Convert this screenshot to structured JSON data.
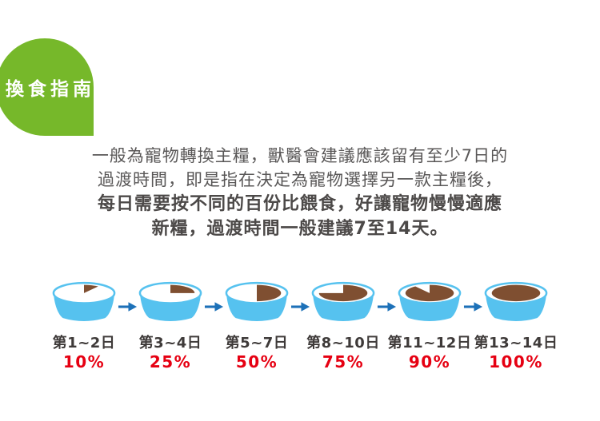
{
  "badge": {
    "label": "換食指南",
    "bg_color": "#76b82a",
    "text_color": "#ffffff"
  },
  "intro": {
    "lines": [
      "一般為寵物轉換主糧，獸醫會建議應該留有至少7日的",
      "過渡時間，即是指在決定為寵物選擇另一款主糧後，"
    ],
    "emphasis_lines": [
      "每日需要按不同的百份比餵食，好讓寵物慢慢適應",
      "新糧，過渡時間一般建議7至14天。"
    ]
  },
  "chart_data": {
    "type": "pie",
    "title": "換食指南",
    "categories": [
      "第1~2日",
      "第3~4日",
      "第5~7日",
      "第8~10日",
      "第11~12日",
      "第13~14日"
    ],
    "values": [
      10,
      25,
      50,
      75,
      90,
      100
    ],
    "steps": [
      {
        "days": "第1~2日",
        "percent_label": "10%",
        "value": 10
      },
      {
        "days": "第3~4日",
        "percent_label": "25%",
        "value": 25
      },
      {
        "days": "第5~7日",
        "percent_label": "50%",
        "value": 50
      },
      {
        "days": "第8~10日",
        "percent_label": "75%",
        "value": 75
      },
      {
        "days": "第11~12日",
        "percent_label": "90%",
        "value": 90
      },
      {
        "days": "第13~14日",
        "percent_label": "100%",
        "value": 100
      }
    ],
    "colors": {
      "bowl_blue": "#56c2ef",
      "rim_fill": "#ffffff",
      "food_brown": "#7f4f31",
      "arrow_blue": "#1d71b8",
      "day_text": "#3e3a39",
      "percent_text": "#e60012"
    }
  }
}
